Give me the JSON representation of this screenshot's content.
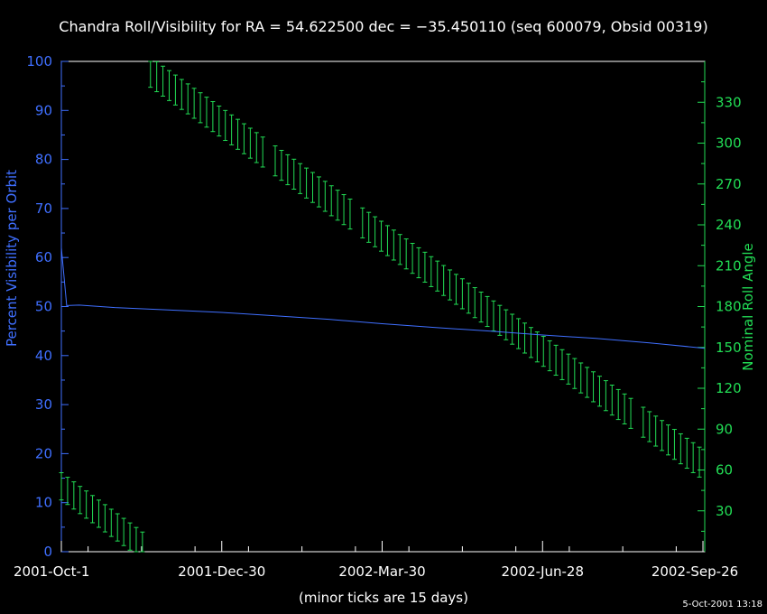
{
  "chart_data": {
    "type": "line",
    "title": "Chandra Roll/Visibility for RA = 54.622500 dec = −35.450110 (seq 600079, Obsid 00319)",
    "x_ticks": [
      "2001‑Oct‑1",
      "2001‑Dec‑30",
      "2002‑Mar‑30",
      "2002‑Jun‑28",
      "2002‑Sep‑26"
    ],
    "x_tick_days": [
      0,
      90,
      180,
      270,
      360
    ],
    "x_range_days": [
      0,
      361
    ],
    "xlabel": "(minor ticks are 15 days)",
    "ylabel_left": "Percent Visibility per Orbit",
    "ylabel_right": "Nominal Roll Angle",
    "ylim_left": [
      0,
      100
    ],
    "ylim_right": [
      0,
      360
    ],
    "yticks_left": [
      "0",
      "10",
      "20",
      "30",
      "40",
      "50",
      "60",
      "70",
      "80",
      "90",
      "100"
    ],
    "yticks_right": [
      "30",
      "60",
      "90",
      "120",
      "150",
      "180",
      "210",
      "240",
      "270",
      "300",
      "330"
    ],
    "timestamp": "5-Oct-2001 13:18",
    "colors": {
      "visibility": "#3f6fff",
      "roll": "#22dd55",
      "axes": "#ffffff",
      "background": "#000000"
    },
    "series": [
      {
        "name": "Percent Visibility per Orbit",
        "axis": "left",
        "points": [
          [
            0,
            62
          ],
          [
            3,
            50.2
          ],
          [
            10,
            50.3
          ],
          [
            30,
            49.8
          ],
          [
            60,
            49.3
          ],
          [
            90,
            48.8
          ],
          [
            120,
            48.1
          ],
          [
            150,
            47.4
          ],
          [
            180,
            46.5
          ],
          [
            210,
            45.7
          ],
          [
            240,
            45.0
          ],
          [
            270,
            44.2
          ],
          [
            300,
            43.5
          ],
          [
            330,
            42.6
          ],
          [
            361,
            41.5
          ]
        ]
      },
      {
        "name": "Nominal Roll Angle",
        "axis": "right",
        "type": "errorbar",
        "segments": [
          {
            "days": [
              0,
              47
            ],
            "mid_start": 48,
            "mid_end": 3,
            "halfwidth": 10
          },
          {
            "days": [
              50,
              361
            ],
            "mid_start": 352,
            "mid_end": 63,
            "halfwidth": 11
          }
        ],
        "step_days": 3.5,
        "gaps_days": [
          [
            115,
            118
          ],
          [
            165,
            168
          ],
          [
            323,
            325
          ]
        ]
      }
    ]
  }
}
